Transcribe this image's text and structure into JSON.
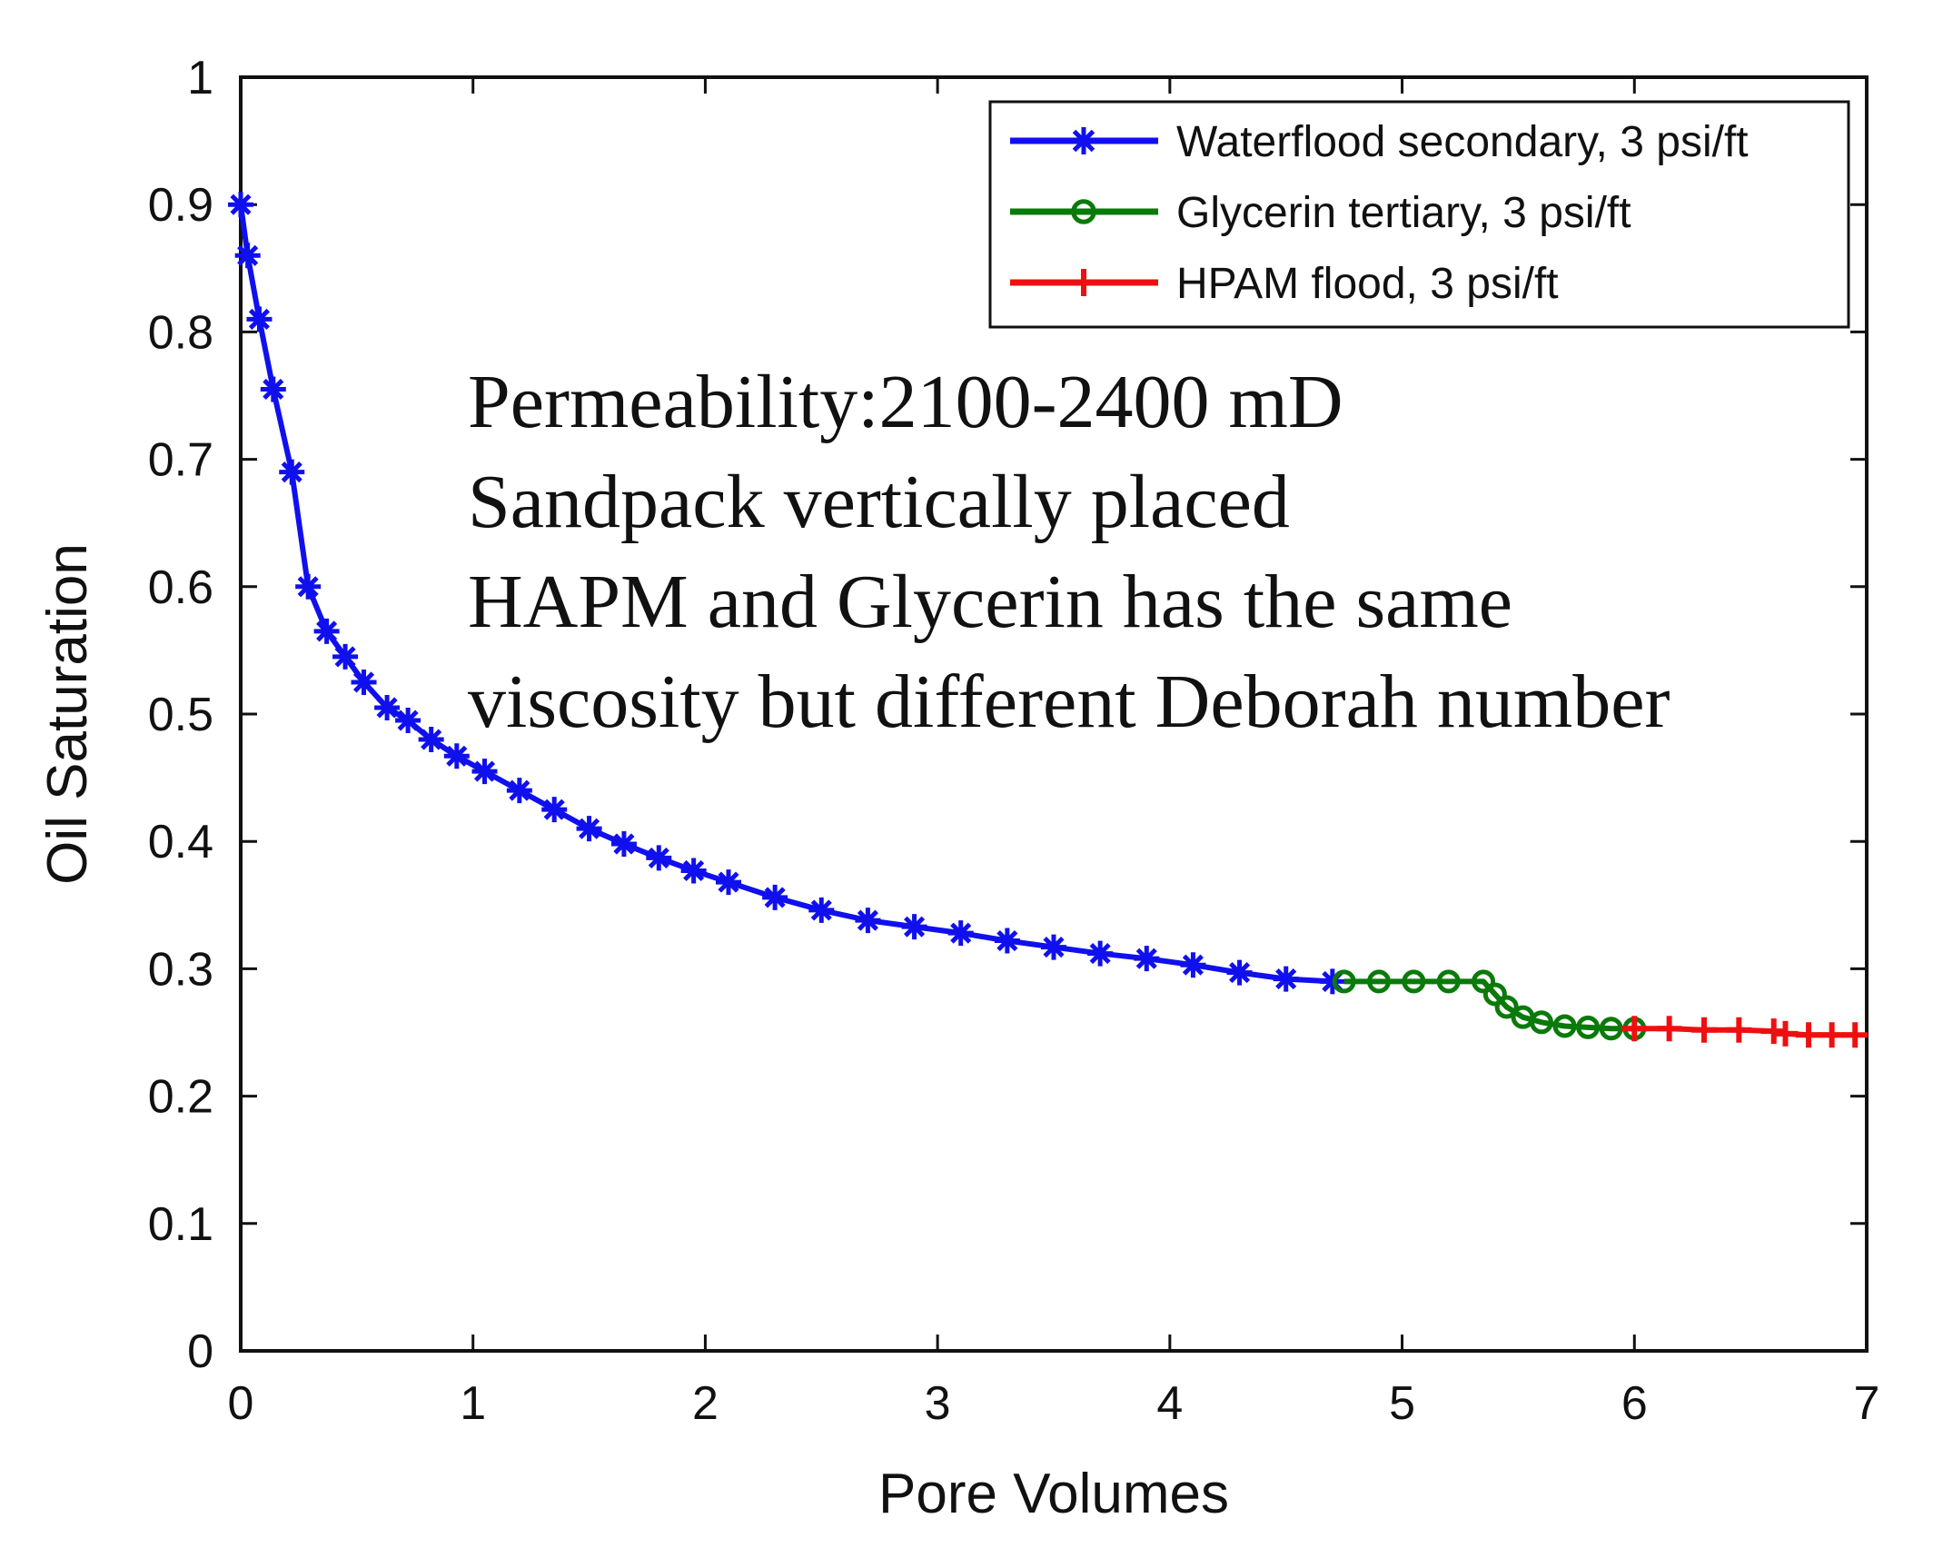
{
  "chart_data": {
    "type": "line",
    "title": "",
    "xlabel": "Pore Volumes",
    "ylabel": "Oil Saturation",
    "xlim": [
      0,
      7
    ],
    "ylim": [
      0,
      1
    ],
    "xticks": [
      0,
      1,
      2,
      3,
      4,
      5,
      6,
      7
    ],
    "xtick_labels": [
      "0",
      "1",
      "2",
      "3",
      "4",
      "5",
      "6",
      "7"
    ],
    "yticks": [
      0,
      0.1,
      0.2,
      0.3,
      0.4,
      0.5,
      0.6,
      0.7,
      0.8,
      0.9,
      1
    ],
    "ytick_labels": [
      "0",
      "0.1",
      "0.2",
      "0.3",
      "0.4",
      "0.5",
      "0.6",
      "0.7",
      "0.8",
      "0.9",
      "1"
    ],
    "grid": false,
    "legend_position": "top-right",
    "series": [
      {
        "name": "Waterflood secondary, 3 psi/ft",
        "color": "#1010ee",
        "marker": "star",
        "x": [
          0,
          0.03,
          0.08,
          0.14,
          0.22,
          0.29,
          0.37,
          0.45,
          0.53,
          0.63,
          0.72,
          0.82,
          0.93,
          1.05,
          1.2,
          1.35,
          1.5,
          1.65,
          1.8,
          1.95,
          2.1,
          2.3,
          2.5,
          2.7,
          2.9,
          3.1,
          3.3,
          3.5,
          3.7,
          3.9,
          4.1,
          4.3,
          4.5,
          4.7
        ],
        "y": [
          0.9,
          0.86,
          0.81,
          0.755,
          0.69,
          0.6,
          0.565,
          0.545,
          0.525,
          0.505,
          0.495,
          0.48,
          0.467,
          0.455,
          0.44,
          0.425,
          0.41,
          0.398,
          0.387,
          0.377,
          0.368,
          0.356,
          0.346,
          0.338,
          0.333,
          0.328,
          0.322,
          0.317,
          0.312,
          0.308,
          0.303,
          0.297,
          0.292,
          0.29
        ]
      },
      {
        "name": "Glycerin tertiary, 3 psi/ft",
        "color": "#0a7a0a",
        "marker": "circle",
        "x": [
          4.75,
          4.9,
          5.05,
          5.2,
          5.35,
          5.4,
          5.45,
          5.52,
          5.6,
          5.7,
          5.8,
          5.9,
          6.0
        ],
        "y": [
          0.29,
          0.29,
          0.29,
          0.29,
          0.29,
          0.28,
          0.27,
          0.262,
          0.258,
          0.255,
          0.254,
          0.253,
          0.253
        ]
      },
      {
        "name": "HPAM flood, 3 psi/ft",
        "color": "#ee1010",
        "marker": "plus",
        "x": [
          6.0,
          6.15,
          6.3,
          6.45,
          6.6,
          6.65,
          6.75,
          6.85,
          6.95
        ],
        "y": [
          0.253,
          0.253,
          0.252,
          0.252,
          0.251,
          0.249,
          0.248,
          0.248,
          0.248
        ]
      }
    ],
    "annotation_lines": [
      "Permeability:2100-2400  mD",
      "Sandpack vertically  placed",
      "HAPM and Glycerin has the same",
      "viscosity but different Deborah number"
    ]
  }
}
